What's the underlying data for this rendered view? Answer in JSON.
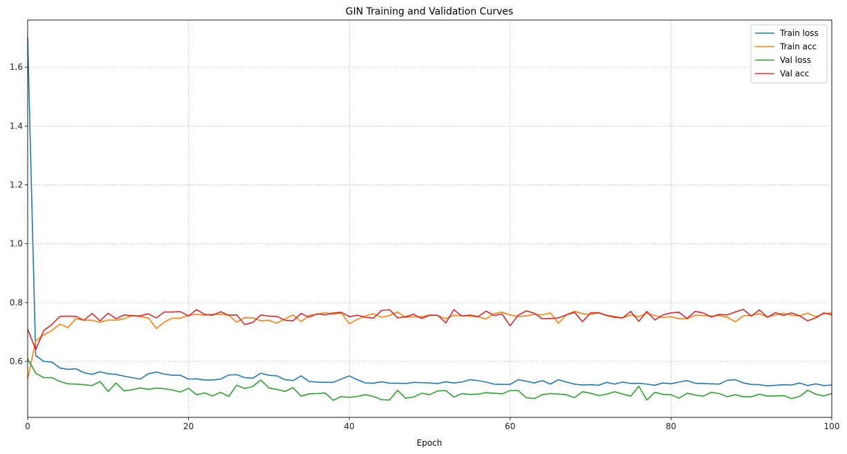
{
  "chart_data": {
    "type": "line",
    "title": "GIN Training and Validation Curves",
    "xlabel": "Epoch",
    "ylabel": "",
    "xlim": [
      0,
      100
    ],
    "ylim": [
      0.41,
      1.76
    ],
    "x_ticks": [
      "0",
      "20",
      "40",
      "60",
      "80",
      "100"
    ],
    "y_ticks": [
      "0.6",
      "0.8",
      "1.0",
      "1.2",
      "1.4",
      "1.6"
    ],
    "grid": true,
    "grid_style": "dotted",
    "legend_position": "top-right",
    "series": [
      {
        "name": "Train loss",
        "color": "#1f77b4",
        "values": [
          1.7,
          0.62,
          0.6,
          0.598,
          0.578,
          0.573,
          0.575,
          0.562,
          0.556,
          0.565,
          0.558,
          0.556,
          0.55,
          0.545,
          0.54,
          0.558,
          0.564,
          0.557,
          0.553,
          0.553,
          0.54,
          0.541,
          0.537,
          0.537,
          0.54,
          0.554,
          0.555,
          0.545,
          0.543,
          0.56,
          0.553,
          0.551,
          0.538,
          0.535,
          0.551,
          0.532,
          0.53,
          0.529,
          0.529,
          0.54,
          0.551,
          0.538,
          0.527,
          0.526,
          0.531,
          0.526,
          0.526,
          0.525,
          0.529,
          0.528,
          0.527,
          0.525,
          0.531,
          0.527,
          0.53,
          0.538,
          0.535,
          0.53,
          0.523,
          0.522,
          0.522,
          0.538,
          0.533,
          0.527,
          0.535,
          0.523,
          0.538,
          0.53,
          0.523,
          0.52,
          0.521,
          0.519,
          0.529,
          0.523,
          0.53,
          0.525,
          0.526,
          0.523,
          0.519,
          0.527,
          0.524,
          0.53,
          0.535,
          0.526,
          0.525,
          0.524,
          0.523,
          0.536,
          0.538,
          0.527,
          0.522,
          0.521,
          0.517,
          0.519,
          0.521,
          0.52,
          0.527,
          0.518,
          0.524,
          0.518,
          0.52
        ]
      },
      {
        "name": "Train acc",
        "color": "#ff7f0e",
        "values": [
          0.54,
          0.67,
          0.69,
          0.705,
          0.727,
          0.715,
          0.745,
          0.74,
          0.74,
          0.733,
          0.741,
          0.74,
          0.745,
          0.757,
          0.752,
          0.748,
          0.712,
          0.734,
          0.747,
          0.747,
          0.757,
          0.76,
          0.757,
          0.76,
          0.76,
          0.757,
          0.733,
          0.749,
          0.748,
          0.738,
          0.74,
          0.73,
          0.745,
          0.758,
          0.735,
          0.757,
          0.76,
          0.766,
          0.76,
          0.765,
          0.728,
          0.743,
          0.755,
          0.762,
          0.75,
          0.756,
          0.768,
          0.75,
          0.752,
          0.752,
          0.758,
          0.756,
          0.745,
          0.757,
          0.755,
          0.754,
          0.752,
          0.744,
          0.763,
          0.767,
          0.758,
          0.753,
          0.755,
          0.76,
          0.758,
          0.765,
          0.73,
          0.759,
          0.77,
          0.762,
          0.76,
          0.765,
          0.757,
          0.753,
          0.748,
          0.758,
          0.752,
          0.764,
          0.756,
          0.749,
          0.752,
          0.745,
          0.745,
          0.757,
          0.756,
          0.754,
          0.756,
          0.75,
          0.735,
          0.755,
          0.757,
          0.762,
          0.751,
          0.758,
          0.764,
          0.757,
          0.755,
          0.764,
          0.752,
          0.762,
          0.765
        ]
      },
      {
        "name": "Val loss",
        "color": "#2ca02c",
        "values": [
          0.61,
          0.56,
          0.545,
          0.545,
          0.532,
          0.524,
          0.523,
          0.521,
          0.518,
          0.532,
          0.498,
          0.527,
          0.5,
          0.504,
          0.51,
          0.505,
          0.51,
          0.507,
          0.503,
          0.496,
          0.509,
          0.487,
          0.493,
          0.483,
          0.495,
          0.481,
          0.519,
          0.508,
          0.515,
          0.537,
          0.51,
          0.505,
          0.498,
          0.511,
          0.482,
          0.49,
          0.491,
          0.493,
          0.468,
          0.481,
          0.478,
          0.481,
          0.487,
          0.481,
          0.47,
          0.469,
          0.502,
          0.475,
          0.479,
          0.492,
          0.487,
          0.5,
          0.501,
          0.479,
          0.491,
          0.488,
          0.489,
          0.494,
          0.492,
          0.49,
          0.501,
          0.501,
          0.477,
          0.474,
          0.487,
          0.491,
          0.489,
          0.487,
          0.477,
          0.497,
          0.492,
          0.484,
          0.489,
          0.497,
          0.489,
          0.482,
          0.516,
          0.469,
          0.495,
          0.488,
          0.487,
          0.475,
          0.492,
          0.486,
          0.482,
          0.495,
          0.491,
          0.48,
          0.487,
          0.48,
          0.48,
          0.489,
          0.482,
          0.483,
          0.484,
          0.474,
          0.481,
          0.502,
          0.489,
          0.483,
          0.491
        ]
      },
      {
        "name": "Val acc",
        "color": "#d62728",
        "values": [
          0.71,
          0.64,
          0.705,
          0.725,
          0.753,
          0.754,
          0.753,
          0.74,
          0.763,
          0.738,
          0.764,
          0.745,
          0.758,
          0.755,
          0.755,
          0.762,
          0.748,
          0.768,
          0.768,
          0.769,
          0.754,
          0.776,
          0.76,
          0.757,
          0.769,
          0.757,
          0.758,
          0.725,
          0.733,
          0.758,
          0.754,
          0.753,
          0.74,
          0.738,
          0.763,
          0.75,
          0.762,
          0.758,
          0.765,
          0.767,
          0.752,
          0.757,
          0.75,
          0.747,
          0.773,
          0.776,
          0.748,
          0.752,
          0.76,
          0.746,
          0.757,
          0.757,
          0.731,
          0.776,
          0.754,
          0.758,
          0.752,
          0.771,
          0.756,
          0.761,
          0.721,
          0.757,
          0.772,
          0.764,
          0.745,
          0.746,
          0.748,
          0.758,
          0.767,
          0.735,
          0.765,
          0.766,
          0.756,
          0.75,
          0.748,
          0.77,
          0.736,
          0.77,
          0.741,
          0.758,
          0.765,
          0.767,
          0.746,
          0.77,
          0.765,
          0.751,
          0.76,
          0.758,
          0.768,
          0.777,
          0.754,
          0.775,
          0.75,
          0.766,
          0.756,
          0.765,
          0.755,
          0.738,
          0.748,
          0.765,
          0.758
        ]
      }
    ]
  }
}
